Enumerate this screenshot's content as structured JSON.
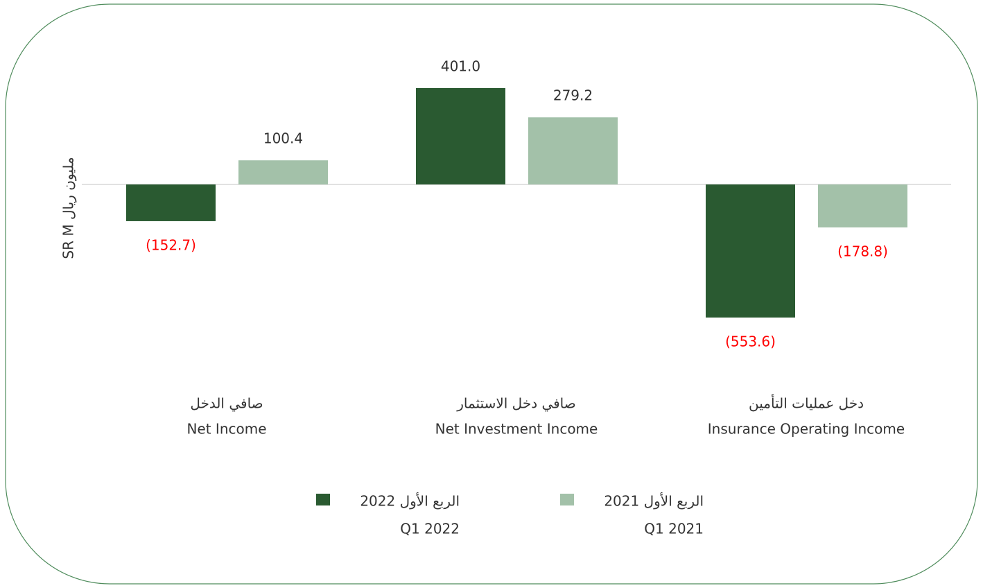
{
  "chart_data": {
    "type": "bar",
    "y_label": "SR M  مليون ريال",
    "categories": [
      "Net Income",
      "Net Investment Income",
      "Insurance Operating Income"
    ],
    "categories_ar": [
      "صافي الدخل",
      "صافي دخل الاستثمار",
      "دخل عمليات التأمين"
    ],
    "series": [
      {
        "name": "الربع الأول 2022",
        "name_en": "Q1 2022",
        "color": "#2a5a31",
        "values": [
          -152.7,
          401.0,
          -553.6
        ],
        "value_labels": [
          "(152.7)",
          "401.0",
          "(553.6)"
        ]
      },
      {
        "name": "الربع الأول 2021",
        "name_en": "Q1 2021",
        "color": "#a3c1a9",
        "values": [
          100.4,
          279.2,
          -178.8
        ],
        "value_labels": [
          "100.4",
          "279.2",
          "(178.8)"
        ]
      }
    ],
    "ylim": [
      -600,
      500
    ],
    "label_color": "#333333",
    "negative_label_color": "#ff0000"
  }
}
